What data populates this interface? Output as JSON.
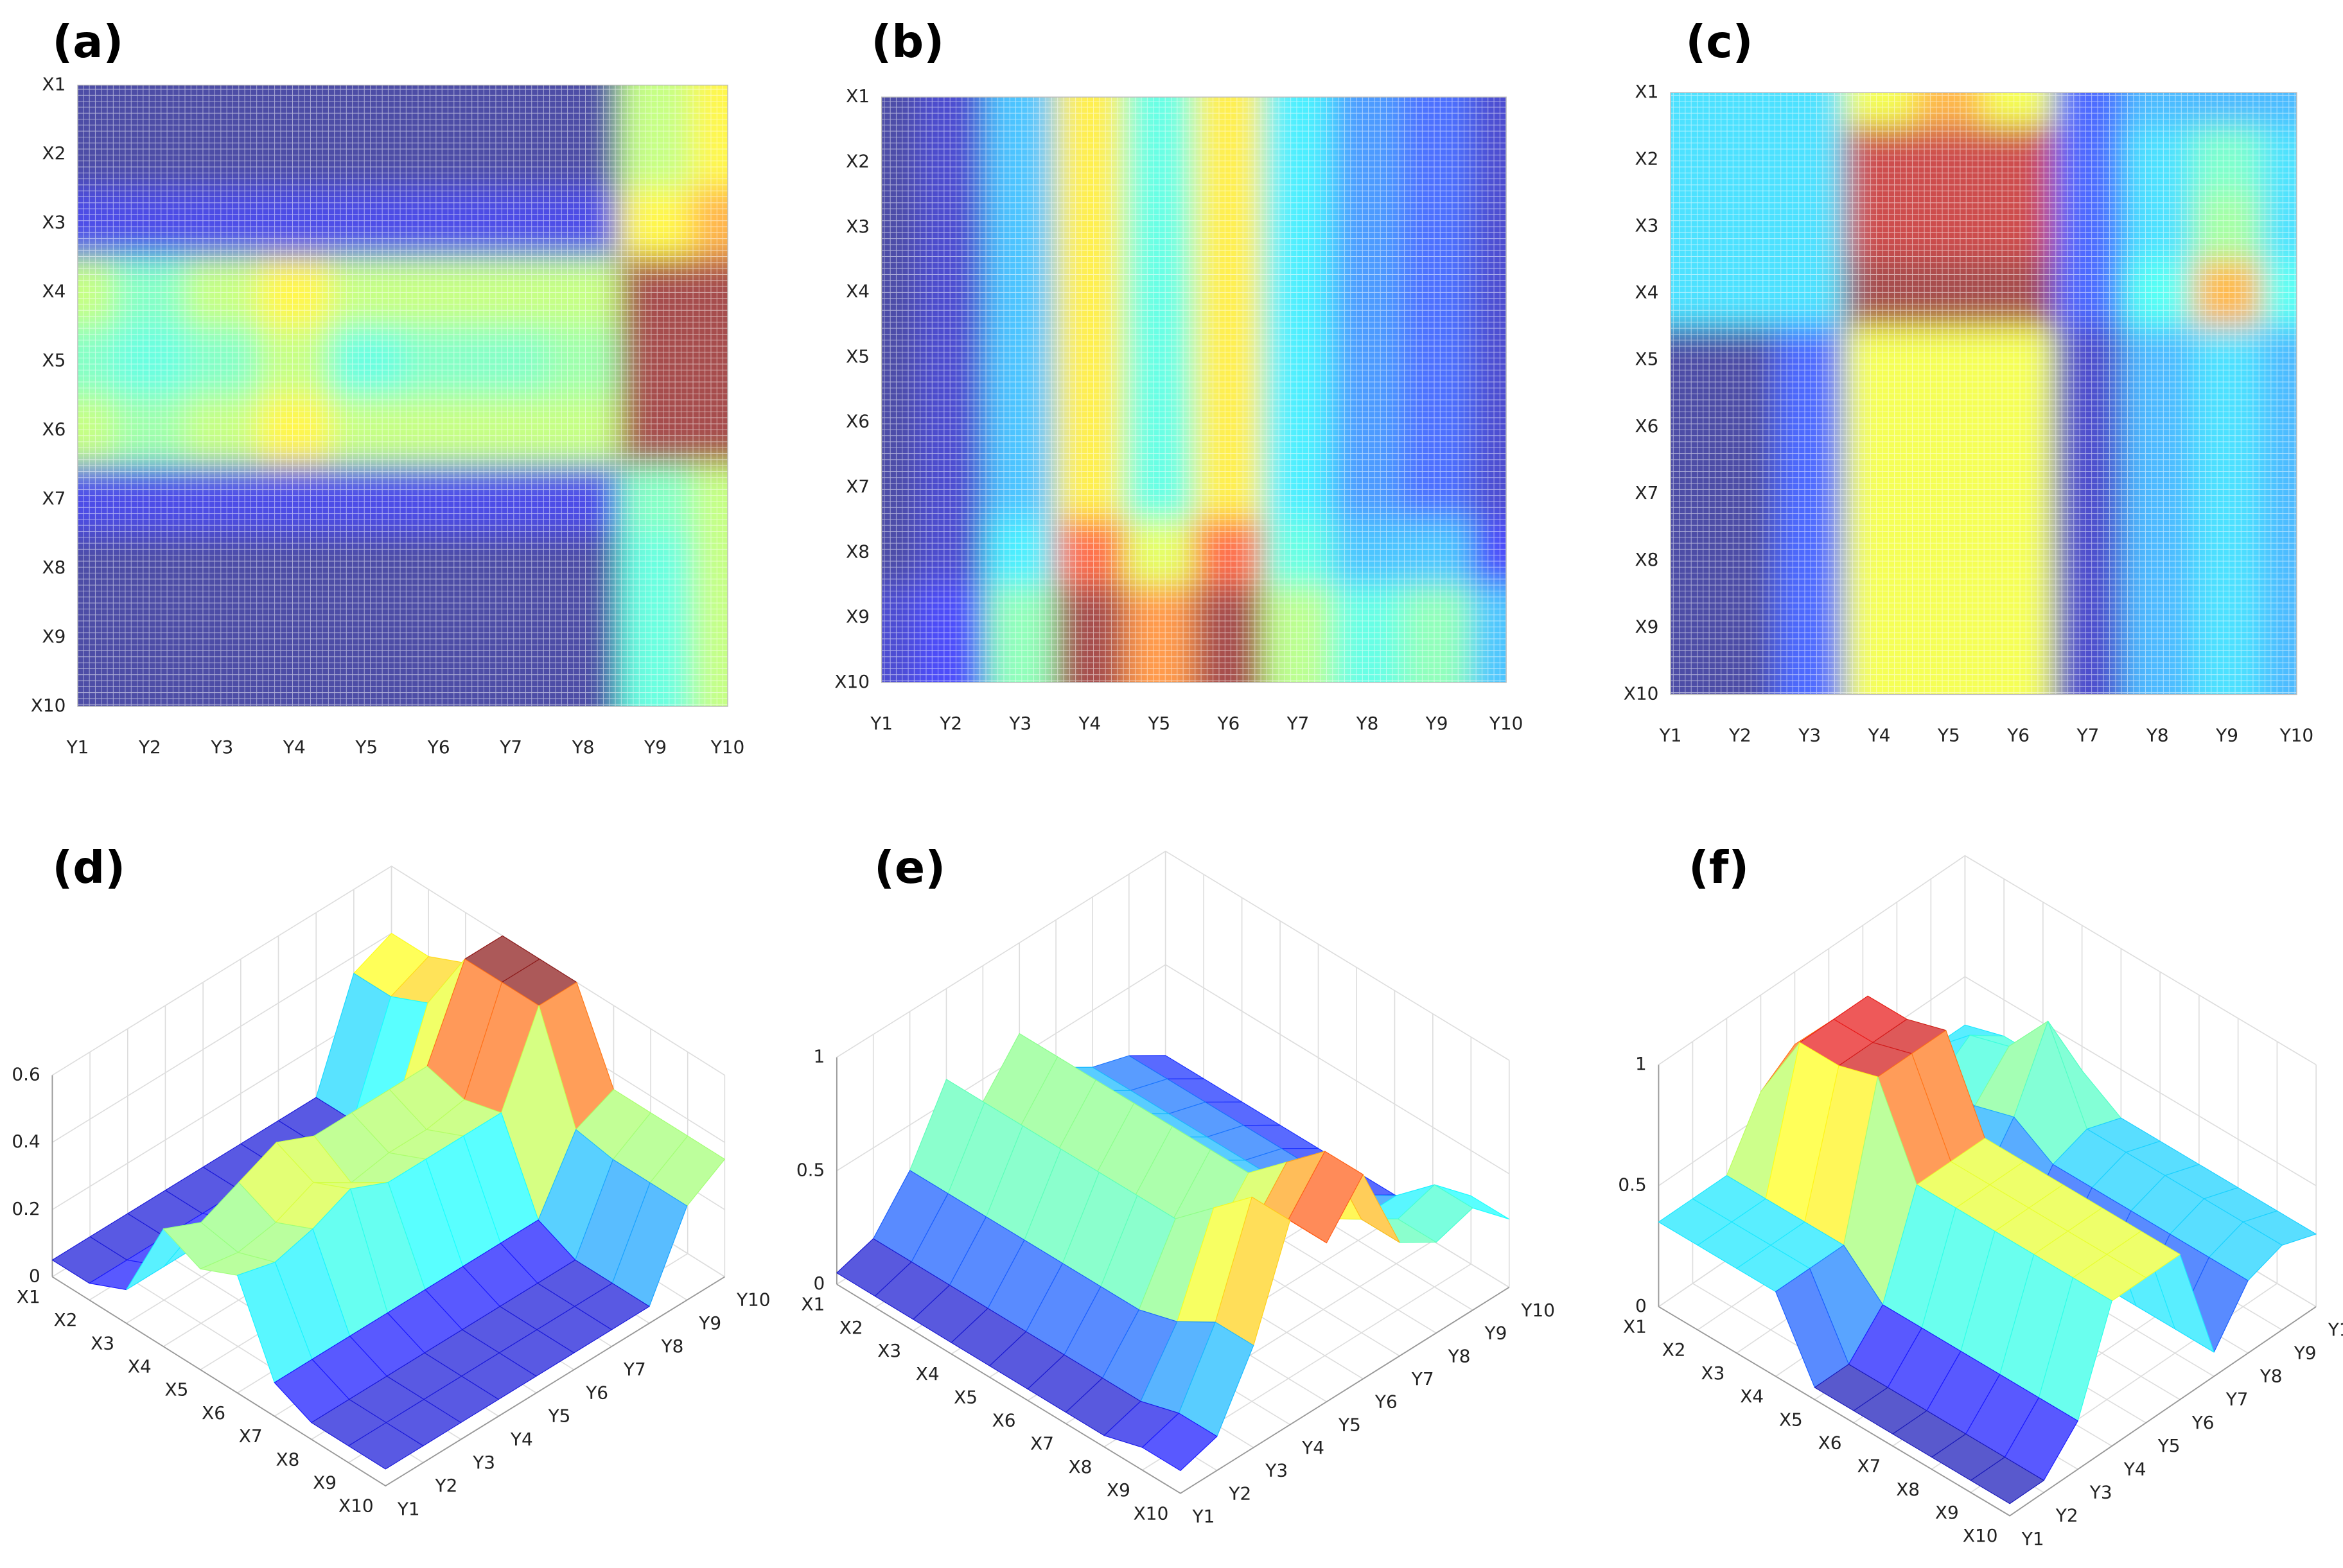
{
  "chart_data": [
    {
      "type": "heatmap",
      "panel_label": "(a)",
      "x_categories": [
        "Y1",
        "Y2",
        "Y3",
        "Y4",
        "Y5",
        "Y6",
        "Y7",
        "Y8",
        "Y9",
        "Y10"
      ],
      "y_categories": [
        "X1",
        "X2",
        "X3",
        "X4",
        "X5",
        "X6",
        "X7",
        "X8",
        "X9",
        "X10"
      ],
      "values": [
        [
          0.05,
          0.05,
          0.05,
          0.05,
          0.05,
          0.05,
          0.05,
          0.05,
          0.35,
          0.4
        ],
        [
          0.05,
          0.05,
          0.05,
          0.05,
          0.05,
          0.05,
          0.05,
          0.05,
          0.35,
          0.4
        ],
        [
          0.1,
          0.1,
          0.1,
          0.1,
          0.1,
          0.1,
          0.1,
          0.1,
          0.4,
          0.45
        ],
        [
          0.35,
          0.3,
          0.35,
          0.4,
          0.35,
          0.35,
          0.35,
          0.35,
          0.6,
          0.6
        ],
        [
          0.3,
          0.28,
          0.3,
          0.35,
          0.28,
          0.3,
          0.3,
          0.32,
          0.6,
          0.6
        ],
        [
          0.35,
          0.32,
          0.35,
          0.4,
          0.35,
          0.35,
          0.35,
          0.35,
          0.6,
          0.6
        ],
        [
          0.1,
          0.1,
          0.1,
          0.1,
          0.1,
          0.1,
          0.1,
          0.1,
          0.3,
          0.35
        ],
        [
          0.05,
          0.05,
          0.05,
          0.05,
          0.05,
          0.05,
          0.05,
          0.05,
          0.28,
          0.35
        ],
        [
          0.05,
          0.05,
          0.05,
          0.05,
          0.05,
          0.05,
          0.05,
          0.05,
          0.28,
          0.35
        ],
        [
          0.05,
          0.05,
          0.05,
          0.05,
          0.05,
          0.05,
          0.05,
          0.05,
          0.28,
          0.35
        ]
      ]
    },
    {
      "type": "heatmap",
      "panel_label": "(b)",
      "x_categories": [
        "Y1",
        "Y2",
        "Y3",
        "Y4",
        "Y5",
        "Y6",
        "Y7",
        "Y8",
        "Y9",
        "Y10"
      ],
      "y_categories": [
        "X1",
        "X2",
        "X3",
        "X4",
        "X5",
        "X6",
        "X7",
        "X8",
        "X9",
        "X10"
      ],
      "values": [
        [
          0.05,
          0.1,
          0.3,
          0.6,
          0.4,
          0.6,
          0.35,
          0.25,
          0.2,
          0.1
        ],
        [
          0.05,
          0.1,
          0.3,
          0.6,
          0.4,
          0.6,
          0.35,
          0.25,
          0.2,
          0.1
        ],
        [
          0.05,
          0.1,
          0.3,
          0.6,
          0.4,
          0.6,
          0.35,
          0.25,
          0.2,
          0.1
        ],
        [
          0.05,
          0.1,
          0.3,
          0.6,
          0.4,
          0.6,
          0.35,
          0.25,
          0.2,
          0.1
        ],
        [
          0.05,
          0.1,
          0.3,
          0.6,
          0.4,
          0.6,
          0.35,
          0.25,
          0.2,
          0.1
        ],
        [
          0.05,
          0.1,
          0.3,
          0.6,
          0.4,
          0.6,
          0.35,
          0.25,
          0.2,
          0.1
        ],
        [
          0.05,
          0.1,
          0.3,
          0.6,
          0.4,
          0.6,
          0.35,
          0.25,
          0.2,
          0.1
        ],
        [
          0.05,
          0.1,
          0.35,
          0.75,
          0.55,
          0.75,
          0.4,
          0.3,
          0.3,
          0.15
        ],
        [
          0.1,
          0.15,
          0.45,
          0.9,
          0.7,
          0.9,
          0.5,
          0.4,
          0.45,
          0.3
        ],
        [
          0.1,
          0.15,
          0.45,
          0.9,
          0.7,
          0.9,
          0.5,
          0.4,
          0.45,
          0.3
        ]
      ]
    },
    {
      "type": "heatmap",
      "panel_label": "(c)",
      "x_categories": [
        "Y1",
        "Y2",
        "Y3",
        "Y4",
        "Y5",
        "Y6",
        "Y7",
        "Y8",
        "Y9",
        "Y10"
      ],
      "y_categories": [
        "X1",
        "X2",
        "X3",
        "X4",
        "X5",
        "X6",
        "X7",
        "X8",
        "X9",
        "X10"
      ],
      "values": [
        [
          0.35,
          0.35,
          0.35,
          0.6,
          0.7,
          0.6,
          0.2,
          0.3,
          0.3,
          0.3
        ],
        [
          0.35,
          0.35,
          0.35,
          0.9,
          0.9,
          0.9,
          0.2,
          0.35,
          0.45,
          0.35
        ],
        [
          0.35,
          0.35,
          0.35,
          0.9,
          0.9,
          0.9,
          0.2,
          0.35,
          0.5,
          0.35
        ],
        [
          0.35,
          0.35,
          0.35,
          0.95,
          0.95,
          0.95,
          0.2,
          0.4,
          0.7,
          0.4
        ],
        [
          0.05,
          0.05,
          0.2,
          0.6,
          0.6,
          0.6,
          0.1,
          0.3,
          0.35,
          0.3
        ],
        [
          0.05,
          0.05,
          0.2,
          0.6,
          0.6,
          0.6,
          0.1,
          0.3,
          0.35,
          0.3
        ],
        [
          0.05,
          0.05,
          0.2,
          0.6,
          0.6,
          0.6,
          0.1,
          0.3,
          0.35,
          0.3
        ],
        [
          0.05,
          0.05,
          0.2,
          0.6,
          0.6,
          0.6,
          0.1,
          0.3,
          0.35,
          0.3
        ],
        [
          0.05,
          0.05,
          0.2,
          0.6,
          0.6,
          0.6,
          0.1,
          0.3,
          0.35,
          0.3
        ],
        [
          0.05,
          0.05,
          0.2,
          0.6,
          0.6,
          0.6,
          0.1,
          0.3,
          0.35,
          0.3
        ]
      ]
    },
    {
      "type": "surface",
      "panel_label": "(d)",
      "x_categories": [
        "X1",
        "X2",
        "X3",
        "X4",
        "X5",
        "X6",
        "X7",
        "X8",
        "X9",
        "X10"
      ],
      "y_categories": [
        "Y1",
        "Y2",
        "Y3",
        "Y4",
        "Y5",
        "Y6",
        "Y7",
        "Y8",
        "Y9",
        "Y10"
      ],
      "zlim": [
        0,
        0.6
      ],
      "zticks": [
        0,
        0.2,
        0.4,
        0.6
      ],
      "values": [
        [
          0.05,
          0.05,
          0.05,
          0.05,
          0.05,
          0.05,
          0.05,
          0.05,
          0.35,
          0.4
        ],
        [
          0.05,
          0.05,
          0.05,
          0.05,
          0.05,
          0.05,
          0.05,
          0.05,
          0.35,
          0.4
        ],
        [
          0.1,
          0.1,
          0.1,
          0.1,
          0.1,
          0.1,
          0.1,
          0.1,
          0.4,
          0.45
        ],
        [
          0.35,
          0.3,
          0.35,
          0.4,
          0.35,
          0.35,
          0.35,
          0.35,
          0.6,
          0.6
        ],
        [
          0.3,
          0.28,
          0.3,
          0.35,
          0.28,
          0.3,
          0.3,
          0.32,
          0.6,
          0.6
        ],
        [
          0.35,
          0.32,
          0.35,
          0.4,
          0.35,
          0.35,
          0.35,
          0.35,
          0.6,
          0.6
        ],
        [
          0.1,
          0.1,
          0.1,
          0.1,
          0.1,
          0.1,
          0.1,
          0.1,
          0.3,
          0.35
        ],
        [
          0.05,
          0.05,
          0.05,
          0.05,
          0.05,
          0.05,
          0.05,
          0.05,
          0.28,
          0.35
        ],
        [
          0.05,
          0.05,
          0.05,
          0.05,
          0.05,
          0.05,
          0.05,
          0.05,
          0.28,
          0.35
        ],
        [
          0.05,
          0.05,
          0.05,
          0.05,
          0.05,
          0.05,
          0.05,
          0.05,
          0.28,
          0.35
        ]
      ]
    },
    {
      "type": "surface",
      "panel_label": "(e)",
      "x_categories": [
        "X1",
        "X2",
        "X3",
        "X4",
        "X5",
        "X6",
        "X7",
        "X8",
        "X9",
        "X10"
      ],
      "y_categories": [
        "Y1",
        "Y2",
        "Y3",
        "Y4",
        "Y5",
        "Y6",
        "Y7",
        "Y8",
        "Y9",
        "Y10"
      ],
      "zlim": [
        0,
        1
      ],
      "zticks": [
        0,
        0.5,
        1
      ],
      "values": [
        [
          0.05,
          0.1,
          0.3,
          0.6,
          0.4,
          0.6,
          0.35,
          0.25,
          0.2,
          0.1
        ],
        [
          0.05,
          0.1,
          0.3,
          0.6,
          0.4,
          0.6,
          0.35,
          0.25,
          0.2,
          0.1
        ],
        [
          0.05,
          0.1,
          0.3,
          0.6,
          0.4,
          0.6,
          0.35,
          0.25,
          0.2,
          0.1
        ],
        [
          0.05,
          0.1,
          0.3,
          0.6,
          0.4,
          0.6,
          0.35,
          0.25,
          0.2,
          0.1
        ],
        [
          0.05,
          0.1,
          0.3,
          0.6,
          0.4,
          0.6,
          0.35,
          0.25,
          0.2,
          0.1
        ],
        [
          0.05,
          0.1,
          0.3,
          0.6,
          0.4,
          0.6,
          0.35,
          0.25,
          0.2,
          0.1
        ],
        [
          0.05,
          0.1,
          0.3,
          0.6,
          0.4,
          0.6,
          0.35,
          0.25,
          0.2,
          0.1
        ],
        [
          0.05,
          0.1,
          0.35,
          0.75,
          0.55,
          0.75,
          0.4,
          0.3,
          0.3,
          0.15
        ],
        [
          0.1,
          0.15,
          0.45,
          0.9,
          0.7,
          0.9,
          0.5,
          0.4,
          0.45,
          0.3
        ],
        [
          0.1,
          0.15,
          0.45,
          0.9,
          0.7,
          0.9,
          0.5,
          0.4,
          0.45,
          0.3
        ]
      ]
    },
    {
      "type": "surface",
      "panel_label": "(f)",
      "x_categories": [
        "X1",
        "X2",
        "X3",
        "X4",
        "X5",
        "X6",
        "X7",
        "X8",
        "X9",
        "X10"
      ],
      "y_categories": [
        "Y1",
        "Y2",
        "Y3",
        "Y4",
        "Y5",
        "Y6",
        "Y7",
        "Y8",
        "Y9",
        "Y10"
      ],
      "zlim": [
        0,
        1
      ],
      "zticks": [
        0,
        0.5,
        1
      ],
      "values": [
        [
          0.35,
          0.35,
          0.35,
          0.6,
          0.7,
          0.6,
          0.2,
          0.3,
          0.3,
          0.3
        ],
        [
          0.35,
          0.35,
          0.35,
          0.9,
          0.9,
          0.9,
          0.2,
          0.35,
          0.45,
          0.35
        ],
        [
          0.35,
          0.35,
          0.35,
          0.9,
          0.9,
          0.9,
          0.2,
          0.35,
          0.5,
          0.35
        ],
        [
          0.35,
          0.35,
          0.35,
          0.95,
          0.95,
          0.95,
          0.2,
          0.4,
          0.7,
          0.4
        ],
        [
          0.05,
          0.05,
          0.2,
          0.6,
          0.6,
          0.6,
          0.1,
          0.3,
          0.35,
          0.3
        ],
        [
          0.05,
          0.05,
          0.2,
          0.6,
          0.6,
          0.6,
          0.1,
          0.3,
          0.35,
          0.3
        ],
        [
          0.05,
          0.05,
          0.2,
          0.6,
          0.6,
          0.6,
          0.1,
          0.3,
          0.35,
          0.3
        ],
        [
          0.05,
          0.05,
          0.2,
          0.6,
          0.6,
          0.6,
          0.1,
          0.3,
          0.35,
          0.3
        ],
        [
          0.05,
          0.05,
          0.2,
          0.6,
          0.6,
          0.6,
          0.1,
          0.3,
          0.35,
          0.3
        ],
        [
          0.05,
          0.05,
          0.2,
          0.6,
          0.6,
          0.6,
          0.1,
          0.3,
          0.35,
          0.3
        ]
      ]
    }
  ]
}
